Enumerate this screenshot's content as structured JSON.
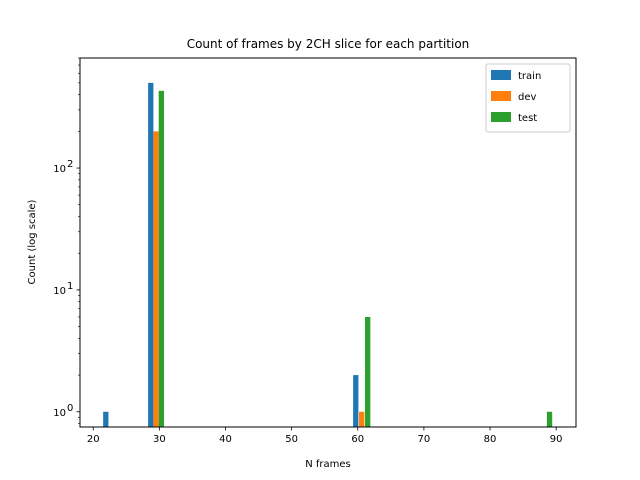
{
  "chart_data": {
    "type": "bar",
    "title": "Count of frames by 2CH slice for each partition",
    "xlabel": "N frames",
    "ylabel": "Count (log scale)",
    "xlim": [
      18,
      93
    ],
    "ylim": [
      0.75,
      800
    ],
    "yscale": "log",
    "x_ticks": [
      20,
      30,
      40,
      50,
      60,
      70,
      80,
      90
    ],
    "y_ticks": [
      {
        "value": 1,
        "base": "10",
        "exp": "0"
      },
      {
        "value": 10,
        "base": "10",
        "exp": "1"
      },
      {
        "value": 100,
        "base": "10",
        "exp": "2"
      }
    ],
    "bar_width": 0.8,
    "grid": false,
    "legend_position": "top-right",
    "series": [
      {
        "name": "train",
        "color": "#1f77b4",
        "points": [
          {
            "x": 21.9,
            "y": 1
          },
          {
            "x": 28.7,
            "y": 500
          },
          {
            "x": 59.7,
            "y": 2
          }
        ]
      },
      {
        "name": "dev",
        "color": "#ff7f0e",
        "points": [
          {
            "x": 29.5,
            "y": 200
          },
          {
            "x": 60.6,
            "y": 1
          }
        ]
      },
      {
        "name": "test",
        "color": "#2ca02c",
        "points": [
          {
            "x": 30.3,
            "y": 430
          },
          {
            "x": 61.5,
            "y": 6
          },
          {
            "x": 89.0,
            "y": 1
          }
        ]
      }
    ]
  }
}
